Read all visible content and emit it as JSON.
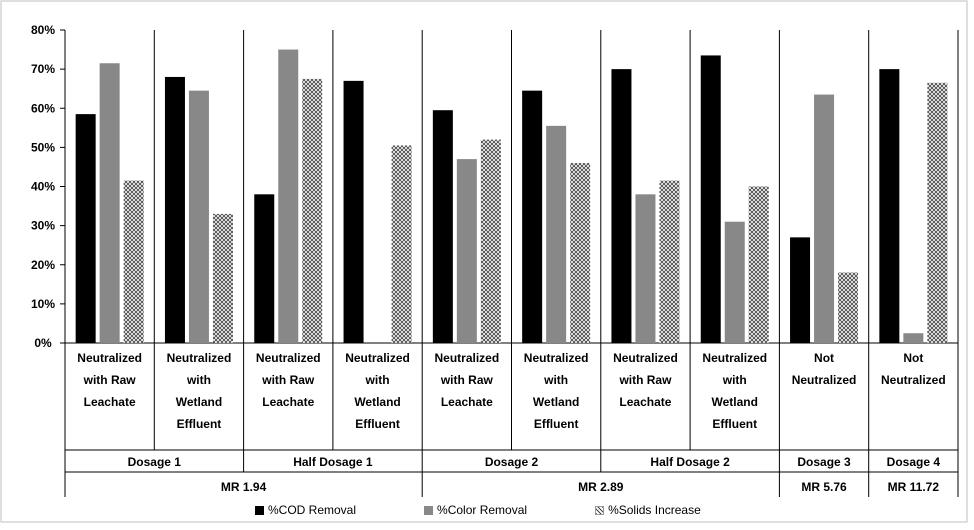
{
  "chart_data": {
    "type": "bar",
    "yticks": [
      "0%",
      "10%",
      "20%",
      "30%",
      "40%",
      "50%",
      "60%",
      "70%",
      "80%"
    ],
    "ylim": [
      0,
      80
    ],
    "grid": false,
    "legend_position": "bottom",
    "categories": [
      [
        "Neutralized",
        "with Raw",
        "Leachate"
      ],
      [
        "Neutralized",
        "with",
        "Wetland",
        "Effluent"
      ],
      [
        "Neutralized",
        "with Raw",
        "Leachate"
      ],
      [
        "Neutralized",
        "with",
        "Wetland",
        "Effluent"
      ],
      [
        "Neutralized",
        "with Raw",
        "Leachate"
      ],
      [
        "Neutralized",
        "with",
        "Wetland",
        "Effluent"
      ],
      [
        "Neutralized",
        "with Raw",
        "Leachate"
      ],
      [
        "Neutralized",
        "with",
        "Wetland",
        "Effluent"
      ],
      [
        "Not",
        "Neutralized"
      ],
      [
        "Not",
        "Neutralized"
      ]
    ],
    "groups": [
      {
        "label": "Dosage 1",
        "start": 0,
        "span": 2
      },
      {
        "label": "Half Dosage 1",
        "start": 2,
        "span": 2
      },
      {
        "label": "Dosage 2",
        "start": 4,
        "span": 2
      },
      {
        "label": "Half Dosage 2",
        "start": 6,
        "span": 2
      },
      {
        "label": "Dosage 3",
        "start": 8,
        "span": 1
      },
      {
        "label": "Dosage 4",
        "start": 9,
        "span": 1
      }
    ],
    "supergroups": [
      {
        "label": "MR 1.94",
        "start": 0,
        "span": 4
      },
      {
        "label": "MR 2.89",
        "start": 4,
        "span": 4
      },
      {
        "label": "MR 5.76",
        "start": 8,
        "span": 1
      },
      {
        "label": "MR 11.72",
        "start": 9,
        "span": 1
      }
    ],
    "series": [
      {
        "name": "%COD Removal",
        "color": "#000000",
        "pattern": "solid",
        "values": [
          58.5,
          68,
          38,
          67,
          59.5,
          64.5,
          70,
          73.5,
          27,
          70
        ]
      },
      {
        "name": "%Color Removal",
        "color": "#888888",
        "pattern": "solid",
        "values": [
          71.5,
          64.5,
          75,
          0,
          47,
          55.5,
          38,
          31,
          63.5,
          2.5
        ]
      },
      {
        "name": "%Solids Increase",
        "color": "#555555",
        "pattern": "crosshatch",
        "values": [
          41.5,
          33,
          67.5,
          50.5,
          52,
          46,
          41.5,
          40,
          18,
          66.5
        ]
      }
    ]
  }
}
